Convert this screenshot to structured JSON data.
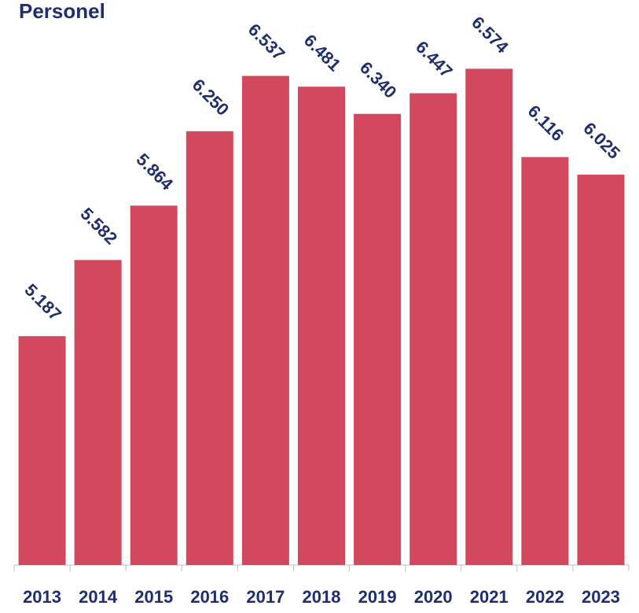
{
  "chart_data": {
    "type": "bar",
    "title": "Personel",
    "categories": [
      "2013",
      "2014",
      "2015",
      "2016",
      "2017",
      "2018",
      "2019",
      "2020",
      "2021",
      "2022",
      "2023"
    ],
    "values": [
      5187,
      5582,
      5864,
      6250,
      6537,
      6481,
      6340,
      6447,
      6574,
      6116,
      6025
    ],
    "value_labels": [
      "5.187",
      "5.582",
      "5.864",
      "6.250",
      "6.537",
      "6.481",
      "6.340",
      "6.447",
      "6.574",
      "6.116",
      "6.025"
    ],
    "color": "#d2495d",
    "ylim": [
      4000,
      6800
    ]
  }
}
